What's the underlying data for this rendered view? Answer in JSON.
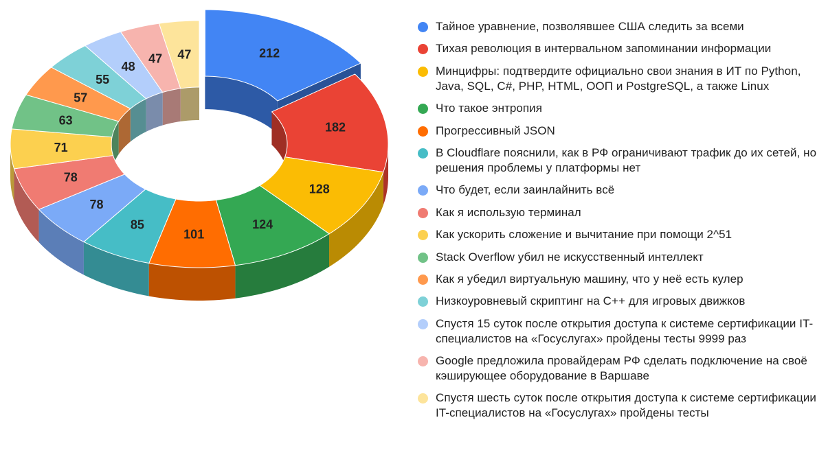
{
  "chart_data": {
    "type": "pie",
    "variant": "3d-donut",
    "exploded_slice": 0,
    "legend_position": "right",
    "series": [
      {
        "label": "Тайное уравнение, позволявшее США следить за всеми",
        "value": 212,
        "color": "#4285F4"
      },
      {
        "label": "Тихая революция в интервальном запоминании информации",
        "value": 182,
        "color": "#EA4335"
      },
      {
        "label": "Минцифры: подтвердите официально свои знания в ИТ по Python, Java, SQL, C#, PHP, HTML, ООП и PostgreSQL, а также Linux",
        "value": 128,
        "color": "#FBBC04"
      },
      {
        "label": "Что такое энтропия",
        "value": 124,
        "color": "#34A853"
      },
      {
        "label": "Прогрессивный JSON",
        "value": 101,
        "color": "#FF6D01"
      },
      {
        "label": "В Cloudflare пояснили, как в РФ ограничивают трафик до их сетей, но решения проблемы у платформы нет",
        "value": 85,
        "color": "#46BDC6"
      },
      {
        "label": "Что будет, если заинлайнить всё",
        "value": 78,
        "color": "#7BAAF7"
      },
      {
        "label": "Как я использую терминал",
        "value": 78,
        "color": "#F07B72"
      },
      {
        "label": "Как ускорить сложение и вычитание при помощи 2^51",
        "value": 71,
        "color": "#FCD04F"
      },
      {
        "label": "Stack Overflow убил не искусственный интеллект",
        "value": 63,
        "color": "#71C287"
      },
      {
        "label": "Как я убедил виртуальную машину, что у неё есть кулер",
        "value": 57,
        "color": "#FF994D"
      },
      {
        "label": "Низкоуровневый скриптинг на C++ для игровых движков",
        "value": 55,
        "color": "#7ED1D7"
      },
      {
        "label": "Спустя 15 суток после открытия доступа к системе сертификации IT-специалистов на «Госуслугах» пройдены тесты 9999 раз",
        "value": 48,
        "color": "#B3CEFB"
      },
      {
        "label": "Google предложила провайдерам РФ сделать подключение на своё кэширующее оборудование в Варшаве",
        "value": 47,
        "color": "#F7B4AE"
      },
      {
        "label": "Спустя шесть суток после открытия доступа к системе сертификации IT-специалистов на «Госуслугах» пройдены тесты",
        "value": 47,
        "color": "#FDE49B"
      }
    ]
  }
}
